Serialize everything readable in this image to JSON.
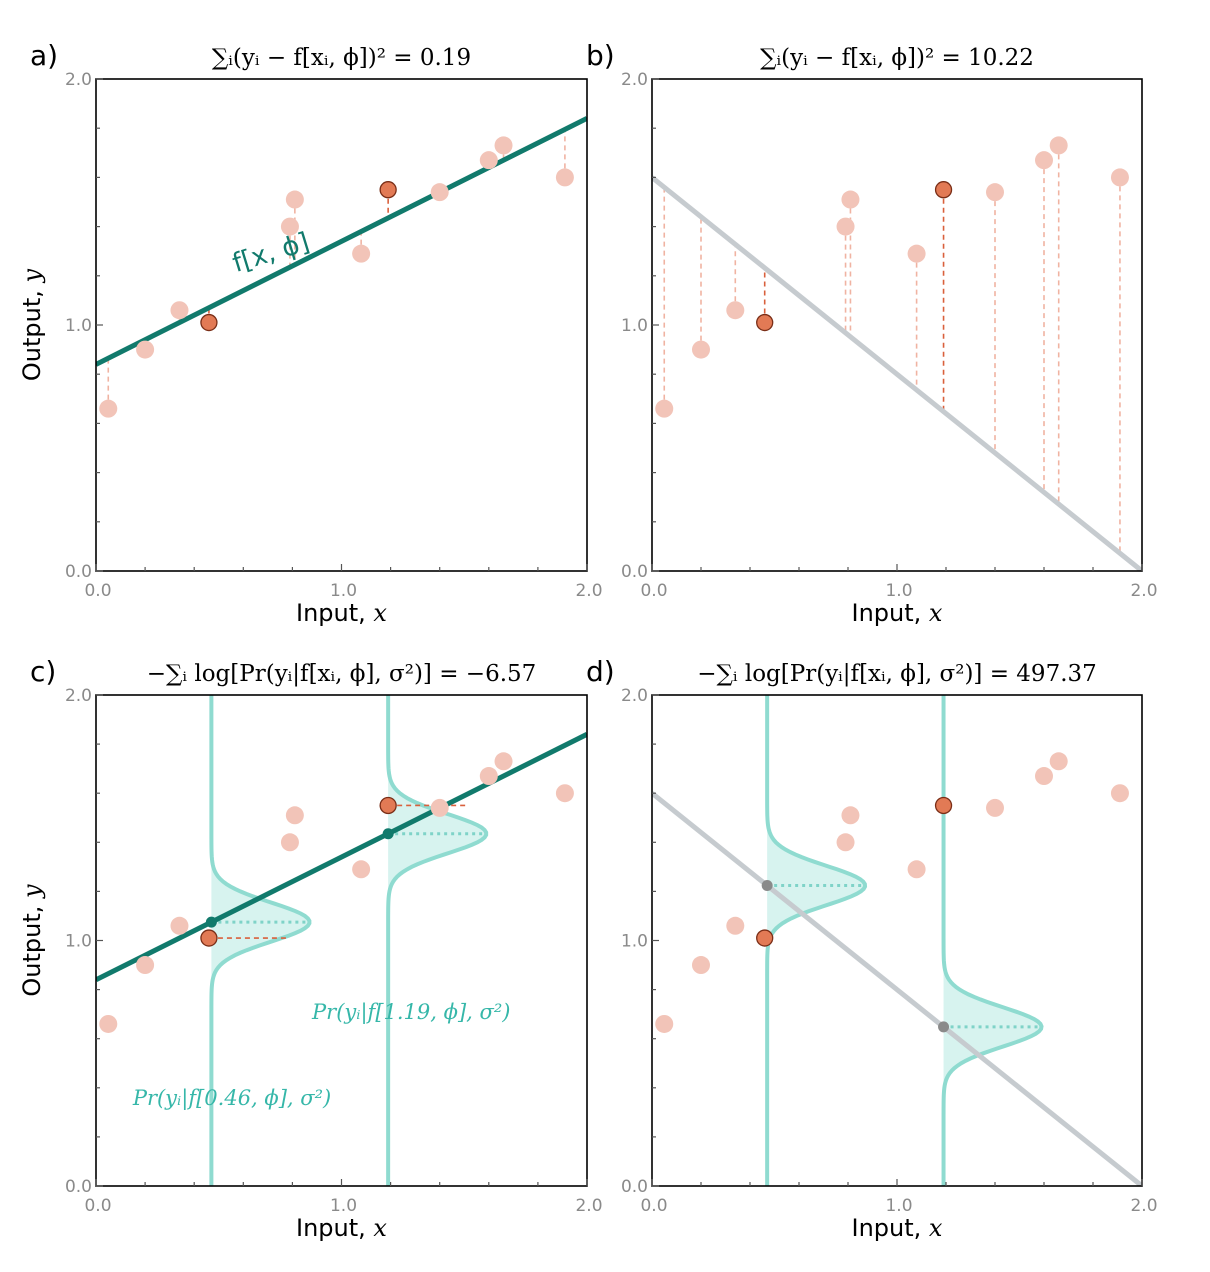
{
  "colors": {
    "good_line": "#117a6c",
    "bad_line": "#c6cbcf",
    "point": "#f2c4b8",
    "highlight": "#e27a55",
    "highlight_stroke": "#7a2e17",
    "residual": "#f0b3a2",
    "residual_dark": "#d9603c",
    "gauss": "#8fdbd0",
    "gauss_fill": "#d7f3ef",
    "gauss_mid": "#7fd3c8",
    "gauss_text": "#36b7a9",
    "bad_mid": "#8a8a8a"
  },
  "chart_data": [
    {
      "id": "a",
      "type": "scatter",
      "panel_label": "a)",
      "title": "∑ᵢ(yᵢ − f[xᵢ, ϕ])² = 0.19",
      "xlabel": "Input, ",
      "xlabel_var": "x",
      "ylabel": "Output, ",
      "ylabel_var": "y",
      "xlim": [
        0,
        2
      ],
      "ylim": [
        0,
        2
      ],
      "xticks": [
        "0.0",
        "1.0",
        "2.0"
      ],
      "yticks": [
        "0.0",
        "1.0",
        "2.0"
      ],
      "line": {
        "intercept": 0.84,
        "slope": 0.5,
        "style": "good"
      },
      "line_label": "f[x, ϕ]",
      "residuals": "all",
      "points": [
        {
          "x": 0.05,
          "y": 0.66
        },
        {
          "x": 0.2,
          "y": 0.9
        },
        {
          "x": 0.34,
          "y": 1.06
        },
        {
          "x": 0.46,
          "y": 1.01,
          "highlight": true
        },
        {
          "x": 0.79,
          "y": 1.4
        },
        {
          "x": 0.81,
          "y": 1.51
        },
        {
          "x": 1.08,
          "y": 1.29
        },
        {
          "x": 1.19,
          "y": 1.55,
          "highlight": true
        },
        {
          "x": 1.4,
          "y": 1.54
        },
        {
          "x": 1.6,
          "y": 1.67
        },
        {
          "x": 1.66,
          "y": 1.73
        },
        {
          "x": 1.91,
          "y": 1.6
        }
      ]
    },
    {
      "id": "b",
      "type": "scatter",
      "panel_label": "b)",
      "title": "∑ᵢ(yᵢ − f[xᵢ, ϕ])² = 10.22",
      "xlabel": "Input, ",
      "xlabel_var": "x",
      "ylabel": "",
      "ylabel_var": "",
      "xlim": [
        0,
        2
      ],
      "ylim": [
        0,
        2
      ],
      "xticks": [
        "0.0",
        "1.0",
        "2.0"
      ],
      "yticks": [
        "0.0",
        "1.0",
        "2.0"
      ],
      "line": {
        "intercept": 1.6,
        "slope": -0.8,
        "style": "bad"
      },
      "line_label": "",
      "residuals": "all",
      "points": [
        {
          "x": 0.05,
          "y": 0.66
        },
        {
          "x": 0.2,
          "y": 0.9
        },
        {
          "x": 0.34,
          "y": 1.06
        },
        {
          "x": 0.46,
          "y": 1.01,
          "highlight": true
        },
        {
          "x": 0.79,
          "y": 1.4
        },
        {
          "x": 0.81,
          "y": 1.51
        },
        {
          "x": 1.08,
          "y": 1.29
        },
        {
          "x": 1.19,
          "y": 1.55,
          "highlight": true
        },
        {
          "x": 1.4,
          "y": 1.54
        },
        {
          "x": 1.6,
          "y": 1.67
        },
        {
          "x": 1.66,
          "y": 1.73
        },
        {
          "x": 1.91,
          "y": 1.6
        }
      ]
    },
    {
      "id": "c",
      "type": "scatter",
      "panel_label": "c)",
      "title": "−∑ᵢ log[Pr(yᵢ|f[xᵢ, ϕ], σ²)] = −6.57",
      "xlabel": "Input, ",
      "xlabel_var": "x",
      "ylabel": "Output, ",
      "ylabel_var": "y",
      "xlim": [
        0,
        2
      ],
      "ylim": [
        0,
        2
      ],
      "xticks": [
        "0.0",
        "1.0",
        "2.0"
      ],
      "yticks": [
        "0.0",
        "1.0",
        "2.0"
      ],
      "line": {
        "intercept": 0.84,
        "slope": 0.5,
        "style": "good"
      },
      "line_label": "",
      "residuals": "none",
      "sigma": 0.08,
      "gauss_peak": 0.4,
      "gaussians": [
        {
          "x": 0.47,
          "annot": "Pr(yᵢ|f[0.46, ϕ], σ²)"
        },
        {
          "x": 1.19,
          "annot": "Pr(yᵢ|f[1.19, ϕ], σ²)"
        }
      ],
      "points": [
        {
          "x": 0.05,
          "y": 0.66
        },
        {
          "x": 0.2,
          "y": 0.9
        },
        {
          "x": 0.34,
          "y": 1.06
        },
        {
          "x": 0.46,
          "y": 1.01,
          "highlight": true
        },
        {
          "x": 0.79,
          "y": 1.4
        },
        {
          "x": 0.81,
          "y": 1.51
        },
        {
          "x": 1.08,
          "y": 1.29
        },
        {
          "x": 1.19,
          "y": 1.55,
          "highlight": true
        },
        {
          "x": 1.4,
          "y": 1.54
        },
        {
          "x": 1.6,
          "y": 1.67
        },
        {
          "x": 1.66,
          "y": 1.73
        },
        {
          "x": 1.91,
          "y": 1.6
        }
      ]
    },
    {
      "id": "d",
      "type": "scatter",
      "panel_label": "d)",
      "title": "−∑ᵢ log[Pr(yᵢ|f[xᵢ, ϕ], σ²)] = 497.37",
      "xlabel": "Input, ",
      "xlabel_var": "x",
      "ylabel": "",
      "ylabel_var": "",
      "xlim": [
        0,
        2
      ],
      "ylim": [
        0,
        2
      ],
      "xticks": [
        "0.0",
        "1.0",
        "2.0"
      ],
      "yticks": [
        "0.0",
        "1.0",
        "2.0"
      ],
      "line": {
        "intercept": 1.6,
        "slope": -0.8,
        "style": "bad"
      },
      "line_label": "",
      "residuals": "none",
      "sigma": 0.08,
      "gauss_peak": 0.4,
      "gaussians": [
        {
          "x": 0.47,
          "annot": ""
        },
        {
          "x": 1.19,
          "annot": ""
        }
      ],
      "points": [
        {
          "x": 0.05,
          "y": 0.66
        },
        {
          "x": 0.2,
          "y": 0.9
        },
        {
          "x": 0.34,
          "y": 1.06
        },
        {
          "x": 0.46,
          "y": 1.01,
          "highlight": true
        },
        {
          "x": 0.79,
          "y": 1.4
        },
        {
          "x": 0.81,
          "y": 1.51
        },
        {
          "x": 1.08,
          "y": 1.29
        },
        {
          "x": 1.19,
          "y": 1.55,
          "highlight": true
        },
        {
          "x": 1.4,
          "y": 1.54
        },
        {
          "x": 1.6,
          "y": 1.67
        },
        {
          "x": 1.66,
          "y": 1.73
        },
        {
          "x": 1.91,
          "y": 1.6
        }
      ]
    }
  ]
}
